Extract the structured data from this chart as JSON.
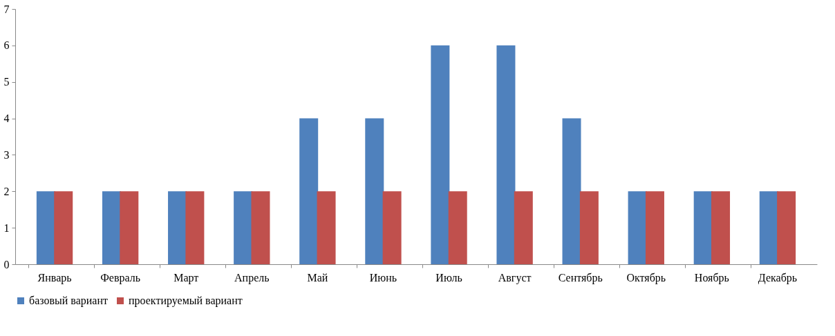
{
  "chart_data": {
    "type": "bar",
    "categories": [
      "Январь",
      "Февраль",
      "Март",
      "Апрель",
      "Май",
      "Июнь",
      "Июль",
      "Август",
      "Сентябрь",
      "Октябрь",
      "Ноябрь",
      "Декабрь"
    ],
    "series": [
      {
        "name": "базовый вариант",
        "color": "#4f81bd",
        "values": [
          2,
          2,
          2,
          2,
          4,
          4,
          6,
          6,
          4,
          2,
          2,
          2
        ]
      },
      {
        "name": "проектируемый вариант",
        "color": "#c0504d",
        "values": [
          2,
          2,
          2,
          2,
          2,
          2,
          2,
          2,
          2,
          2,
          2,
          2
        ]
      }
    ],
    "ylim": [
      0,
      7
    ],
    "yticks": [
      0,
      1,
      2,
      3,
      4,
      5,
      6,
      7
    ],
    "grid": false,
    "legend": "bottom"
  }
}
